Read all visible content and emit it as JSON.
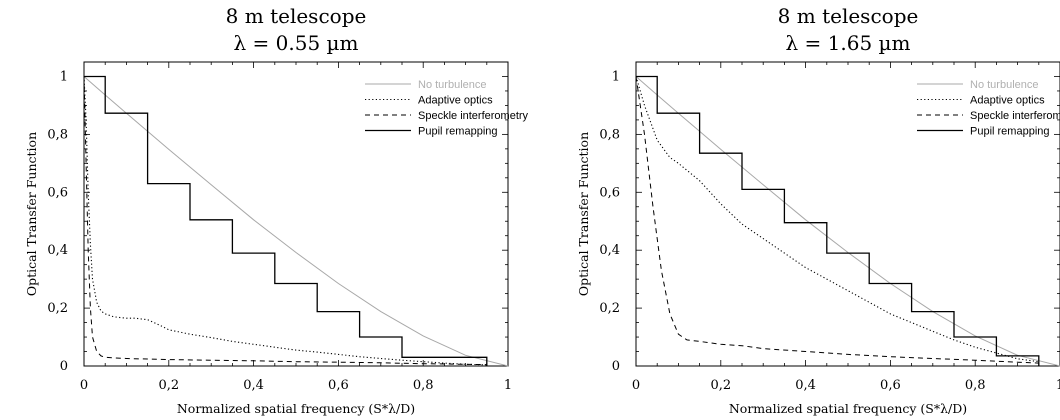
{
  "chart_data": [
    {
      "type": "line",
      "title": "8 m telescope",
      "subtitle": "λ = 0.55 µm",
      "xlabel": "Normalized spatial frequency (S*λ/D)",
      "ylabel": "Optical Transfer Function",
      "xlim": [
        0,
        1
      ],
      "ylim": [
        0,
        1.05
      ],
      "xticks": [
        0,
        0.2,
        0.4,
        0.6,
        0.8,
        1
      ],
      "xtick_labels": [
        "0",
        "0,2",
        "0,4",
        "0,6",
        "0,8",
        "1"
      ],
      "yticks": [
        0,
        0.2,
        0.4,
        0.6,
        0.8,
        1
      ],
      "ytick_labels": [
        "0",
        "0,2",
        "0,4",
        "0,6",
        "0,8",
        "1"
      ],
      "grid": false,
      "legend_position": "top-right",
      "series": [
        {
          "name": "No turbulence",
          "style": "thin-gray",
          "x": [
            0,
            0.05,
            0.1,
            0.2,
            0.3,
            0.4,
            0.5,
            0.6,
            0.7,
            0.8,
            0.9,
            1.0
          ],
          "y": [
            1.0,
            0.936,
            0.873,
            0.748,
            0.626,
            0.505,
            0.392,
            0.285,
            0.188,
            0.104,
            0.037,
            0.0
          ]
        },
        {
          "name": "Adaptive optics",
          "style": "dotted",
          "x": [
            0,
            0.005,
            0.01,
            0.015,
            0.02,
            0.03,
            0.04,
            0.05,
            0.07,
            0.1,
            0.12,
            0.15,
            0.18,
            0.2,
            0.25,
            0.3,
            0.35,
            0.4,
            0.45,
            0.5,
            0.55,
            0.6,
            0.65,
            0.7,
            0.75,
            0.8,
            0.85,
            0.9,
            0.95
          ],
          "y": [
            1.0,
            0.85,
            0.6,
            0.42,
            0.3,
            0.22,
            0.19,
            0.18,
            0.17,
            0.165,
            0.165,
            0.16,
            0.14,
            0.125,
            0.11,
            0.098,
            0.085,
            0.075,
            0.065,
            0.055,
            0.048,
            0.04,
            0.032,
            0.026,
            0.02,
            0.015,
            0.01,
            0.006,
            0.004
          ]
        },
        {
          "name": "Speckle interferometry",
          "style": "dashed",
          "x": [
            0,
            0.005,
            0.01,
            0.015,
            0.02,
            0.03,
            0.04,
            0.05,
            0.07,
            0.1,
            0.2,
            0.3,
            0.4,
            0.5,
            0.6,
            0.7,
            0.8,
            0.9,
            0.95
          ],
          "y": [
            1.0,
            0.7,
            0.4,
            0.2,
            0.1,
            0.05,
            0.035,
            0.03,
            0.028,
            0.026,
            0.022,
            0.02,
            0.018,
            0.015,
            0.013,
            0.011,
            0.008,
            0.006,
            0.005
          ]
        },
        {
          "name": "Pupil remapping",
          "style": "solid-step",
          "x": [
            0,
            0.05,
            0.05,
            0.15,
            0.15,
            0.25,
            0.25,
            0.35,
            0.35,
            0.45,
            0.45,
            0.55,
            0.55,
            0.65,
            0.65,
            0.75,
            0.75,
            0.85,
            0.85,
            0.95,
            0.95
          ],
          "y": [
            1.0,
            1.0,
            0.873,
            0.873,
            0.63,
            0.63,
            0.505,
            0.505,
            0.39,
            0.39,
            0.285,
            0.285,
            0.188,
            0.188,
            0.1,
            0.1,
            0.03,
            0.03,
            0.03,
            0.03,
            0.0
          ]
        }
      ]
    },
    {
      "type": "line",
      "title": "8 m telescope",
      "subtitle": "λ = 1.65 µm",
      "xlabel": "Normalized spatial frequency (S*λ/D)",
      "ylabel": "Optical Transfer Function",
      "xlim": [
        0,
        1
      ],
      "ylim": [
        0,
        1.05
      ],
      "xticks": [
        0,
        0.2,
        0.4,
        0.6,
        0.8,
        1
      ],
      "xtick_labels": [
        "0",
        "0,2",
        "0,4",
        "0,6",
        "0,8",
        "1"
      ],
      "yticks": [
        0,
        0.2,
        0.4,
        0.6,
        0.8,
        1
      ],
      "ytick_labels": [
        "0",
        "0,2",
        "0,4",
        "0,6",
        "0,8",
        "1"
      ],
      "grid": false,
      "legend_position": "top-right",
      "series": [
        {
          "name": "No turbulence",
          "style": "thin-gray",
          "x": [
            0,
            0.05,
            0.1,
            0.2,
            0.3,
            0.4,
            0.5,
            0.6,
            0.7,
            0.8,
            0.9,
            1.0
          ],
          "y": [
            1.0,
            0.936,
            0.873,
            0.748,
            0.626,
            0.505,
            0.392,
            0.285,
            0.188,
            0.104,
            0.037,
            0.0
          ]
        },
        {
          "name": "Adaptive optics",
          "style": "dotted",
          "x": [
            0,
            0.02,
            0.05,
            0.08,
            0.1,
            0.15,
            0.2,
            0.25,
            0.3,
            0.35,
            0.4,
            0.45,
            0.5,
            0.55,
            0.6,
            0.65,
            0.7,
            0.75,
            0.8,
            0.85,
            0.9,
            0.95
          ],
          "y": [
            1.0,
            0.9,
            0.78,
            0.72,
            0.7,
            0.64,
            0.56,
            0.49,
            0.44,
            0.39,
            0.34,
            0.3,
            0.26,
            0.22,
            0.18,
            0.15,
            0.12,
            0.09,
            0.065,
            0.045,
            0.025,
            0.015
          ]
        },
        {
          "name": "Speckle interferometry",
          "style": "dashed",
          "x": [
            0,
            0.02,
            0.04,
            0.06,
            0.08,
            0.1,
            0.12,
            0.15,
            0.2,
            0.25,
            0.3,
            0.4,
            0.5,
            0.6,
            0.7,
            0.8,
            0.9,
            0.95
          ],
          "y": [
            1.0,
            0.8,
            0.55,
            0.33,
            0.18,
            0.11,
            0.09,
            0.085,
            0.075,
            0.07,
            0.06,
            0.05,
            0.04,
            0.032,
            0.026,
            0.02,
            0.013,
            0.01
          ]
        },
        {
          "name": "Pupil remapping",
          "style": "solid-step",
          "x": [
            0,
            0.05,
            0.05,
            0.15,
            0.15,
            0.25,
            0.25,
            0.35,
            0.35,
            0.45,
            0.45,
            0.55,
            0.55,
            0.65,
            0.65,
            0.75,
            0.75,
            0.85,
            0.85,
            0.95,
            0.95
          ],
          "y": [
            1.0,
            1.0,
            0.873,
            0.873,
            0.735,
            0.735,
            0.61,
            0.61,
            0.495,
            0.495,
            0.39,
            0.39,
            0.285,
            0.285,
            0.188,
            0.188,
            0.1,
            0.1,
            0.035,
            0.035,
            0.0
          ]
        }
      ]
    }
  ]
}
